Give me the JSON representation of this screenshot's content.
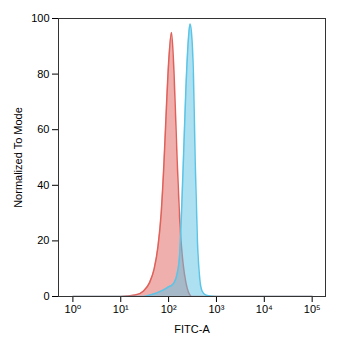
{
  "chart_data": {
    "type": "area",
    "x_label": "FITC-A",
    "y_label": "Normalized To Mode",
    "log": "x",
    "grid": false,
    "x": [
      1,
      10,
      20,
      30,
      40,
      50,
      60,
      70,
      80,
      90,
      100,
      115,
      130,
      150,
      170,
      200,
      230,
      260,
      280,
      300,
      330,
      360,
      400,
      450,
      500,
      600,
      1000,
      100000
    ],
    "series": [
      {
        "color": "#e0605a",
        "values": [
          0,
          0,
          0.5,
          2,
          5,
          10,
          18,
          30,
          48,
          68,
          84,
          95,
          80,
          50,
          28,
          12,
          5,
          1.5,
          0.5,
          0,
          0,
          0,
          0,
          0,
          0,
          0,
          0,
          0
        ]
      },
      {
        "color": "#5cc4e6",
        "values": [
          0,
          0,
          0,
          0,
          0.5,
          1,
          1.5,
          2,
          2.5,
          3,
          3.5,
          4,
          5,
          8,
          15,
          45,
          75,
          93,
          98,
          95,
          80,
          48,
          20,
          6,
          2,
          0.5,
          0,
          0
        ]
      }
    ],
    "xlim": [
      0.5,
      190000
    ],
    "xticks": [
      {
        "value": 1,
        "label": "10⁰"
      },
      {
        "value": 10,
        "label": "10¹"
      },
      {
        "value": 100,
        "label": "10²"
      },
      {
        "value": 1000,
        "label": "10³"
      },
      {
        "value": 10000,
        "label": "10⁴"
      },
      {
        "value": 100000,
        "label": "10⁵"
      }
    ],
    "ylim": [
      0,
      100
    ],
    "yticks": [
      0,
      20,
      40,
      60,
      80,
      100
    ]
  }
}
